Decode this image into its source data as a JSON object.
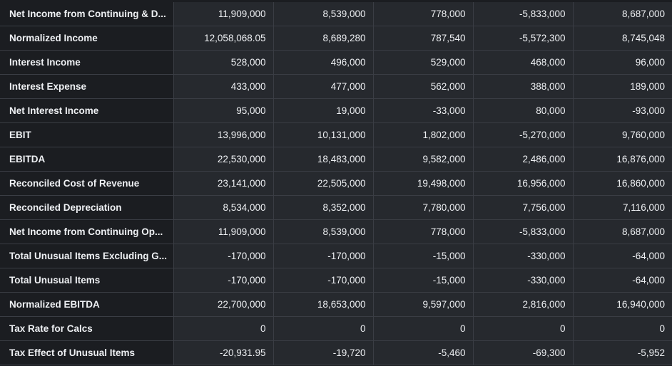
{
  "table": {
    "rows": [
      {
        "label": "Net Income from Continuing & D...",
        "values": [
          "11,909,000",
          "8,539,000",
          "778,000",
          "-5,833,000",
          "8,687,000"
        ]
      },
      {
        "label": "Normalized Income",
        "values": [
          "12,058,068.05",
          "8,689,280",
          "787,540",
          "-5,572,300",
          "8,745,048"
        ]
      },
      {
        "label": "Interest Income",
        "values": [
          "528,000",
          "496,000",
          "529,000",
          "468,000",
          "96,000"
        ]
      },
      {
        "label": "Interest Expense",
        "values": [
          "433,000",
          "477,000",
          "562,000",
          "388,000",
          "189,000"
        ]
      },
      {
        "label": "Net Interest Income",
        "values": [
          "95,000",
          "19,000",
          "-33,000",
          "80,000",
          "-93,000"
        ]
      },
      {
        "label": "EBIT",
        "values": [
          "13,996,000",
          "10,131,000",
          "1,802,000",
          "-5,270,000",
          "9,760,000"
        ]
      },
      {
        "label": "EBITDA",
        "values": [
          "22,530,000",
          "18,483,000",
          "9,582,000",
          "2,486,000",
          "16,876,000"
        ]
      },
      {
        "label": "Reconciled Cost of Revenue",
        "values": [
          "23,141,000",
          "22,505,000",
          "19,498,000",
          "16,956,000",
          "16,860,000"
        ]
      },
      {
        "label": "Reconciled Depreciation",
        "values": [
          "8,534,000",
          "8,352,000",
          "7,780,000",
          "7,756,000",
          "7,116,000"
        ]
      },
      {
        "label": "Net Income from Continuing Op...",
        "values": [
          "11,909,000",
          "8,539,000",
          "778,000",
          "-5,833,000",
          "8,687,000"
        ]
      },
      {
        "label": "Total Unusual Items Excluding G...",
        "values": [
          "-170,000",
          "-170,000",
          "-15,000",
          "-330,000",
          "-64,000"
        ]
      },
      {
        "label": "Total Unusual Items",
        "values": [
          "-170,000",
          "-170,000",
          "-15,000",
          "-330,000",
          "-64,000"
        ]
      },
      {
        "label": "Normalized EBITDA",
        "values": [
          "22,700,000",
          "18,653,000",
          "9,597,000",
          "2,816,000",
          "16,940,000"
        ]
      },
      {
        "label": "Tax Rate for Calcs",
        "values": [
          "0",
          "0",
          "0",
          "0",
          "0"
        ]
      },
      {
        "label": "Tax Effect of Unusual Items",
        "values": [
          "-20,931.95",
          "-19,720",
          "-5,460",
          "-69,300",
          "-5,952"
        ]
      }
    ]
  }
}
